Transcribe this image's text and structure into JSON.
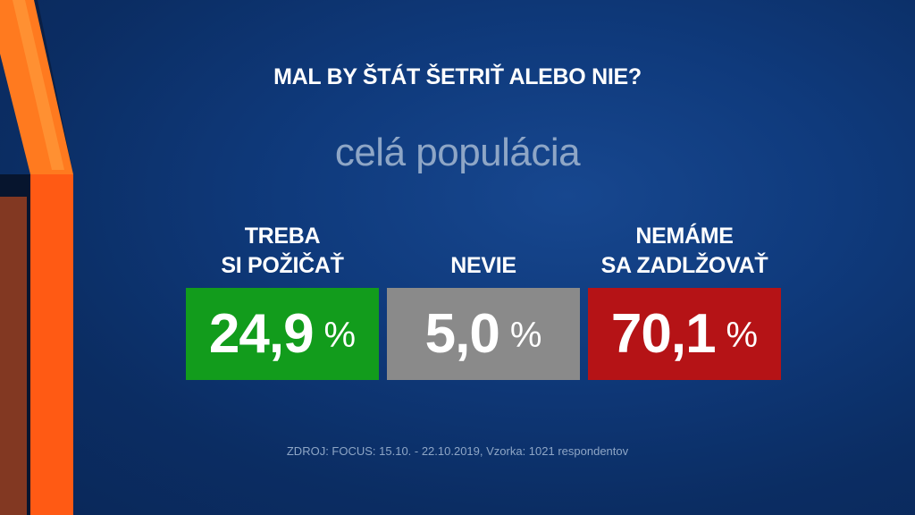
{
  "title": "MAL BY ŠTÁT ŠETRIŤ ALEBO NIE?",
  "subtitle": "celá populácia",
  "options": [
    {
      "label_lines": [
        "TREBA",
        "SI POŽIČAŤ"
      ],
      "value": "24,9",
      "unit": "%",
      "color": "#129c1c"
    },
    {
      "label_lines": [
        "NEVIE"
      ],
      "value": "5,0",
      "unit": "%",
      "color": "#8a8a8a"
    },
    {
      "label_lines": [
        "NEMÁME",
        "SA ZADLŽOVAŤ"
      ],
      "value": "70,1",
      "unit": "%",
      "color": "#b51316"
    }
  ],
  "source": "ZDROJ: FOCUS: 15.10. - 22.10.2019, Vzorka: 1021 respondentov",
  "colors": {
    "background": "#0f3a7c",
    "accent_orange": "#ff6a1a",
    "muted_text": "#8ea6c6"
  }
}
